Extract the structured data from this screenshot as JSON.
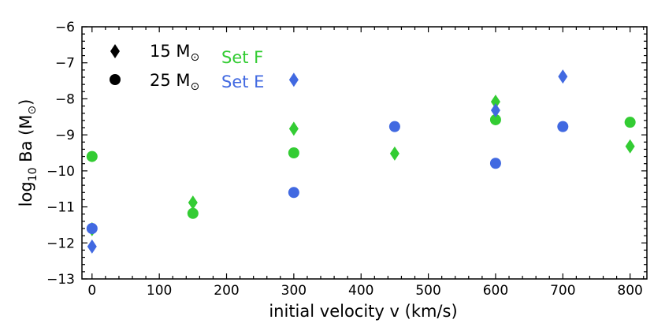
{
  "chart_data": {
    "type": "scatter",
    "xlabel": "initial velocity v (km/s)",
    "ylabel_main": "log",
    "ylabel_sub": "10",
    "ylabel_rest": " Ba (M",
    "ylabel_sun": "⊙",
    "ylabel_close": ")",
    "xlim": [
      -15,
      825
    ],
    "ylim": [
      -13,
      -6
    ],
    "x_ticks": [
      0,
      100,
      200,
      300,
      400,
      500,
      600,
      700,
      800
    ],
    "y_ticks": [
      -13,
      -12,
      -11,
      -10,
      -9,
      -8,
      -7,
      -6
    ],
    "x_tick_labels": [
      "0",
      "100",
      "200",
      "300",
      "400",
      "500",
      "600",
      "700",
      "800"
    ],
    "y_tick_labels": [
      "−13",
      "−12",
      "−11",
      "−10",
      "−9",
      "−8",
      "−7",
      "−6"
    ],
    "legend": {
      "markers": [
        {
          "marker": "diamond",
          "label": "15 M",
          "sun": "⊙"
        },
        {
          "marker": "circle",
          "label": "25 M",
          "sun": "⊙"
        }
      ],
      "sets": [
        {
          "label": "Set F",
          "color": "#33cc33"
        },
        {
          "label": "Set E",
          "color": "#4169e1"
        }
      ]
    },
    "series": [
      {
        "name": "Set F 15 Msun",
        "set": "F",
        "mass": 15,
        "marker": "diamond",
        "color": "#33cc33",
        "points": [
          [
            0,
            -11.62
          ],
          [
            150,
            -10.88
          ],
          [
            300,
            -8.83
          ],
          [
            450,
            -9.52
          ],
          [
            600,
            -8.08
          ],
          [
            800,
            -9.32
          ]
        ]
      },
      {
        "name": "Set F 25 Msun",
        "set": "F",
        "mass": 25,
        "marker": "circle",
        "color": "#33cc33",
        "points": [
          [
            0,
            -9.6
          ],
          [
            150,
            -11.18
          ],
          [
            300,
            -9.5
          ],
          [
            600,
            -8.58
          ],
          [
            800,
            -8.65
          ]
        ]
      },
      {
        "name": "Set E 15 Msun",
        "set": "E",
        "mass": 15,
        "marker": "diamond",
        "color": "#4169e1",
        "points": [
          [
            0,
            -12.1
          ],
          [
            300,
            -7.47
          ],
          [
            600,
            -8.32
          ],
          [
            700,
            -7.38
          ]
        ]
      },
      {
        "name": "Set E 25 Msun",
        "set": "E",
        "mass": 25,
        "marker": "circle",
        "color": "#4169e1",
        "points": [
          [
            0,
            -11.6
          ],
          [
            300,
            -10.6
          ],
          [
            450,
            -8.77
          ],
          [
            600,
            -9.79
          ],
          [
            700,
            -8.77
          ]
        ]
      }
    ]
  }
}
